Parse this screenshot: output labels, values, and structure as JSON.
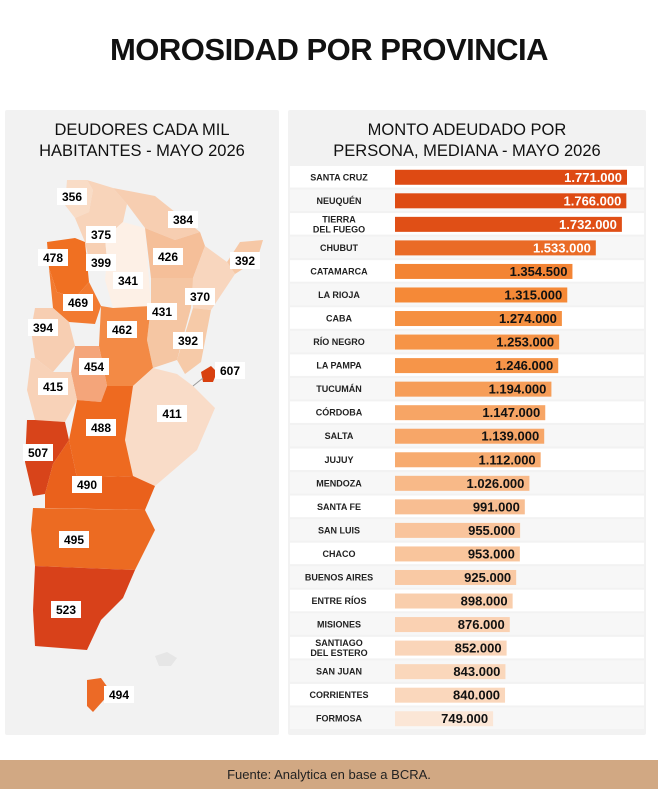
{
  "title": "MOROSIDAD POR PROVINCIA",
  "map": {
    "title_line1": "DEUDORES CADA MIL",
    "title_line2": "HABITANTES - MAYO 2026",
    "labels": [
      {
        "id": "jujuy",
        "value": "356"
      },
      {
        "id": "salta",
        "value": "375"
      },
      {
        "id": "formosa",
        "value": "384"
      },
      {
        "id": "misiones",
        "value": "392"
      },
      {
        "id": "catamarca",
        "value": "478"
      },
      {
        "id": "tucuman",
        "value": "399"
      },
      {
        "id": "chaco",
        "value": "426"
      },
      {
        "id": "santiago",
        "value": "341"
      },
      {
        "id": "corrientes",
        "value": "370"
      },
      {
        "id": "la-rioja",
        "value": "469"
      },
      {
        "id": "santa-fe",
        "value": "431"
      },
      {
        "id": "cordoba",
        "value": "462"
      },
      {
        "id": "san-juan",
        "value": "394"
      },
      {
        "id": "entre-rios",
        "value": "392"
      },
      {
        "id": "san-luis",
        "value": "454"
      },
      {
        "id": "mendoza",
        "value": "415"
      },
      {
        "id": "caba",
        "value": "607"
      },
      {
        "id": "buenos-aires",
        "value": "411"
      },
      {
        "id": "la-pampa",
        "value": "488"
      },
      {
        "id": "neuquen",
        "value": "507"
      },
      {
        "id": "rio-negro",
        "value": "490"
      },
      {
        "id": "chubut",
        "value": "495"
      },
      {
        "id": "santa-cruz",
        "value": "523"
      },
      {
        "id": "tierra-del-fuego",
        "value": "494"
      }
    ]
  },
  "chart_data": {
    "type": "bar",
    "orientation": "horizontal",
    "title": "MONTO ADEUDADO POR PERSONA, MEDIANA - MAYO 2026",
    "title_line1": "MONTO ADEUDADO POR",
    "title_line2": "PERSONA, MEDIANA - MAYO 2026",
    "categories": [
      "SANTA CRUZ",
      "NEUQUÉN",
      "TIERRA DEL FUEGO",
      "CHUBUT",
      "CATAMARCA",
      "LA RIOJA",
      "CABA",
      "RÍO NEGRO",
      "LA PAMPA",
      "TUCUMÁN",
      "CÓRDOBA",
      "SALTA",
      "JUJUY",
      "MENDOZA",
      "SANTA FE",
      "SAN LUIS",
      "CHACO",
      "BUENOS AIRES",
      "ENTRE RÍOS",
      "MISIONES",
      "SANTIAGO DEL ESTERO",
      "SAN JUAN",
      "CORRIENTES",
      "FORMOSA"
    ],
    "category_lines": [
      [
        "SANTA CRUZ"
      ],
      [
        "NEUQUÉN"
      ],
      [
        "TIERRA",
        "DEL FUEGO"
      ],
      [
        "CHUBUT"
      ],
      [
        "CATAMARCA"
      ],
      [
        "LA RIOJA"
      ],
      [
        "CABA"
      ],
      [
        "RÍO NEGRO"
      ],
      [
        "LA PAMPA"
      ],
      [
        "TUCUMÁN"
      ],
      [
        "CÓRDOBA"
      ],
      [
        "SALTA"
      ],
      [
        "JUJUY"
      ],
      [
        "MENDOZA"
      ],
      [
        "SANTA FE"
      ],
      [
        "SAN LUIS"
      ],
      [
        "CHACO"
      ],
      [
        "BUENOS AIRES"
      ],
      [
        "ENTRE RÍOS"
      ],
      [
        "MISIONES"
      ],
      [
        "SANTIAGO",
        "DEL ESTERO"
      ],
      [
        "SAN JUAN"
      ],
      [
        "CORRIENTES"
      ],
      [
        "FORMOSA"
      ]
    ],
    "values": [
      1771000,
      1766000,
      1732000,
      1533000,
      1354500,
      1315000,
      1274000,
      1253000,
      1246000,
      1194000,
      1147000,
      1139000,
      1112000,
      1026000,
      991000,
      955000,
      953000,
      925000,
      898000,
      876000,
      852000,
      843000,
      840000,
      749000
    ],
    "value_labels": [
      "1.771.000",
      "1.766.000",
      "1.732.000",
      "1.533.000",
      "1.354.500",
      "1.315.000",
      "1.274.000",
      "1.253.000",
      "1.246.000",
      "1.194.000",
      "1.147.000",
      "1.139.000",
      "1.112.000",
      "1.026.000",
      "991.000",
      "955.000",
      "953.000",
      "925.000",
      "898.000",
      "876.000",
      "852.000",
      "843.000",
      "840.000",
      "749.000"
    ],
    "xlim": [
      0,
      1771000
    ],
    "colors": {
      "high": "#de4a13",
      "mid": "#f58a37",
      "low": "#fbe6d6"
    }
  },
  "footer": "Fuente: Analytica en base a BCRA."
}
